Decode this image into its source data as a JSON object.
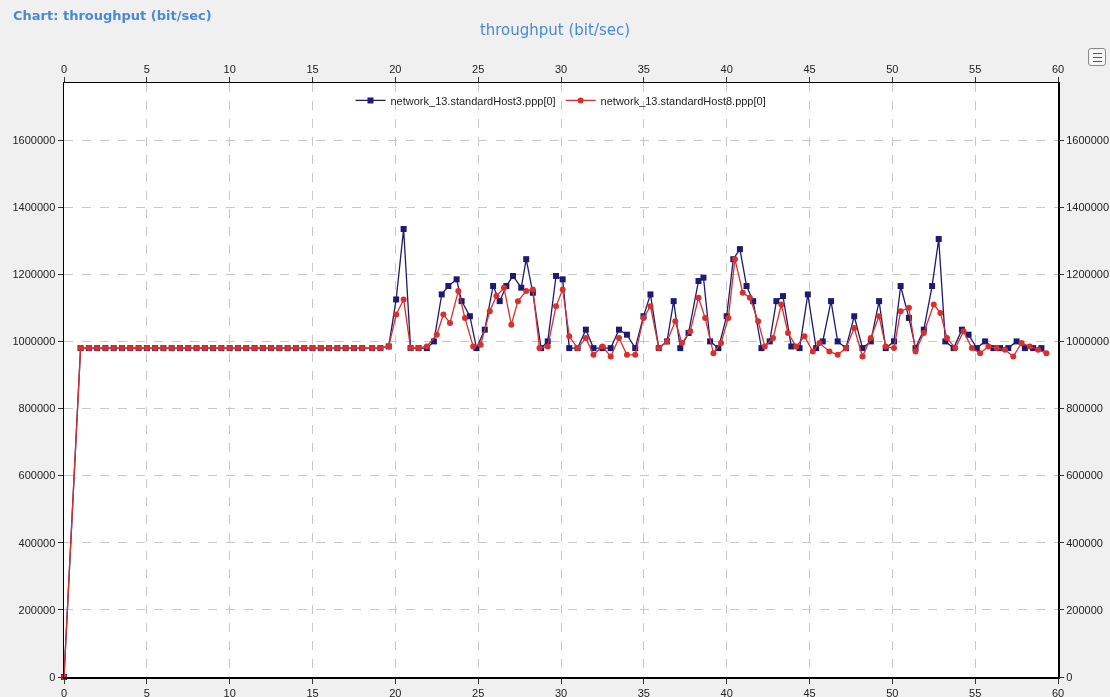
{
  "chart_data": {
    "type": "line",
    "title": "throughput (bit/sec)",
    "annotations": [
      "Chart: throughput (bit/sec)"
    ],
    "xlim": [
      0,
      60
    ],
    "xticks": [
      0,
      5,
      10,
      15,
      20,
      25,
      30,
      35,
      40,
      45,
      50,
      55,
      60
    ],
    "x2lim": [
      0,
      60
    ],
    "x2ticks": [
      0,
      5,
      10,
      15,
      20,
      25,
      30,
      35,
      40,
      45,
      50,
      55,
      60
    ],
    "ylim": [
      0,
      1770000
    ],
    "yticks": [
      0,
      200000,
      400000,
      600000,
      800000,
      1000000,
      1200000,
      1400000,
      1600000
    ],
    "y2lim": [
      0,
      1770000
    ],
    "y2ticks": [
      0,
      200000,
      400000,
      600000,
      800000,
      1000000,
      1200000,
      1400000,
      1600000
    ],
    "grid": true,
    "legend": "top",
    "line_style": "solid",
    "series": [
      {
        "name": "network_13.standardHost3.ppp[0]",
        "color": "#1b1b72",
        "marker": "square",
        "x": [
          0,
          1,
          1.5,
          2,
          2.5,
          3,
          3.5,
          4,
          4.5,
          5,
          5.5,
          6,
          6.5,
          7,
          7.5,
          8,
          8.5,
          9,
          9.5,
          10,
          10.5,
          11,
          11.5,
          12,
          12.5,
          13,
          13.5,
          14,
          14.5,
          15,
          15.5,
          16,
          16.5,
          17,
          17.5,
          18,
          18.6,
          19.1,
          19.6,
          20.05,
          20.5,
          20.92,
          21.4,
          21.9,
          22.33,
          22.8,
          23.2,
          23.7,
          24.0,
          24.5,
          24.9,
          25.4,
          25.9,
          26.3,
          26.7,
          27.1,
          27.6,
          27.9,
          28.3,
          28.8,
          29.2,
          29.7,
          30.1,
          30.5,
          31.0,
          31.5,
          31.96,
          32.5,
          33.0,
          33.5,
          33.98,
          34.48,
          34.98,
          35.4,
          35.9,
          36.4,
          36.8,
          37.2,
          37.7,
          38.3,
          38.6,
          39.0,
          39.5,
          40.0,
          40.4,
          40.8,
          41.2,
          41.6,
          42.1,
          42.6,
          43.0,
          43.4,
          43.9,
          44.4,
          44.9,
          45.4,
          45.8,
          46.3,
          46.7,
          47.2,
          47.7,
          48.2,
          48.7,
          49.2,
          49.6,
          50.1,
          50.5,
          51.0,
          51.4,
          51.9,
          52.4,
          52.8,
          53.2,
          53.7,
          54.2,
          54.6,
          55.1,
          55.6,
          56.1,
          56.5,
          57.0,
          57.5,
          58.0,
          58.5,
          59.0
        ],
        "values": [
          0,
          980000,
          980000,
          980000,
          980000,
          980000,
          980000,
          980000,
          980000,
          980000,
          980000,
          980000,
          980000,
          980000,
          980000,
          980000,
          980000,
          980000,
          980000,
          980000,
          980000,
          980000,
          980000,
          980000,
          980000,
          980000,
          980000,
          980000,
          980000,
          980000,
          980000,
          980000,
          980000,
          980000,
          980000,
          980000,
          980000,
          980000,
          985000,
          1125000,
          1335000,
          980000,
          980000,
          980000,
          1000000,
          1140000,
          1165000,
          1185000,
          1120000,
          1075000,
          980000,
          1035000,
          1165000,
          1120000,
          1165000,
          1195000,
          1160000,
          1245000,
          1145000,
          980000,
          1000000,
          1195000,
          1185000,
          980000,
          980000,
          1035000,
          980000,
          980000,
          980000,
          1035000,
          1020000,
          980000,
          1075000,
          1140000,
          980000,
          1000000,
          1120000,
          980000,
          1025000,
          1180000,
          1190000,
          1000000,
          980000,
          1075000,
          1245000,
          1275000,
          1165000,
          1120000,
          980000,
          1000000,
          1120000,
          1135000,
          985000,
          980000,
          1140000,
          980000,
          1000000,
          1120000,
          1000000,
          980000,
          1075000,
          980000,
          1000000,
          1120000,
          980000,
          1000000,
          1165000,
          1070000,
          980000,
          1035000,
          1165000,
          1305000,
          1000000,
          980000,
          1035000,
          1020000,
          980000,
          1000000,
          980000,
          980000,
          980000,
          1000000,
          980000,
          980000,
          980000
        ]
      },
      {
        "name": "network_13.standardHost8.ppp[0]",
        "color": "#d9302c",
        "marker": "circle",
        "x": [
          0,
          1,
          1.5,
          2,
          2.5,
          3,
          3.5,
          4,
          4.5,
          5,
          5.5,
          6,
          6.5,
          7,
          7.5,
          8,
          8.5,
          9,
          9.5,
          10,
          10.5,
          11,
          11.5,
          12,
          12.5,
          13,
          13.5,
          14,
          14.5,
          15,
          15.5,
          16,
          16.5,
          17,
          17.5,
          18,
          18.6,
          19.1,
          19.6,
          20.05,
          20.5,
          20.92,
          21.4,
          21.9,
          22.5,
          22.9,
          23.3,
          23.8,
          24.2,
          24.7,
          25.15,
          25.7,
          26.1,
          26.56,
          27.0,
          27.4,
          27.9,
          28.3,
          28.7,
          29.2,
          29.7,
          30.1,
          30.5,
          31.0,
          31.5,
          31.96,
          32.5,
          33.0,
          33.5,
          33.98,
          34.48,
          34.98,
          35.4,
          35.9,
          36.4,
          36.9,
          37.3,
          37.8,
          38.3,
          38.7,
          39.2,
          39.66,
          40.1,
          40.5,
          40.97,
          41.4,
          41.9,
          42.3,
          42.8,
          43.3,
          43.7,
          44.2,
          44.7,
          45.2,
          45.6,
          46.2,
          46.7,
          47.2,
          47.7,
          48.2,
          48.7,
          49.2,
          49.6,
          50.1,
          50.5,
          51.0,
          51.4,
          51.9,
          52.5,
          52.9,
          53.3,
          53.8,
          54.3,
          54.8,
          55.3,
          55.8,
          56.3,
          56.8,
          57.3,
          57.8,
          58.3,
          58.8,
          59.3
        ],
        "values": [
          0,
          980000,
          980000,
          980000,
          980000,
          980000,
          980000,
          980000,
          980000,
          980000,
          980000,
          980000,
          980000,
          980000,
          980000,
          980000,
          980000,
          980000,
          980000,
          980000,
          980000,
          980000,
          980000,
          980000,
          980000,
          980000,
          980000,
          980000,
          980000,
          980000,
          980000,
          980000,
          980000,
          980000,
          980000,
          980000,
          980000,
          980000,
          985000,
          1080000,
          1125000,
          980000,
          980000,
          985000,
          1020000,
          1080000,
          1055000,
          1150000,
          1070000,
          985000,
          990000,
          1090000,
          1135000,
          1160000,
          1050000,
          1120000,
          1150000,
          1155000,
          980000,
          985000,
          1105000,
          1155000,
          1015000,
          980000,
          1010000,
          960000,
          985000,
          955000,
          1010000,
          960000,
          960000,
          1070000,
          1105000,
          980000,
          1000000,
          1060000,
          995000,
          1030000,
          1130000,
          1070000,
          965000,
          995000,
          1070000,
          1245000,
          1145000,
          1130000,
          1060000,
          985000,
          1010000,
          1110000,
          1025000,
          985000,
          1015000,
          970000,
          995000,
          970000,
          960000,
          980000,
          1040000,
          955000,
          1010000,
          1075000,
          985000,
          980000,
          1090000,
          1100000,
          970000,
          1025000,
          1110000,
          1085000,
          1010000,
          980000,
          1030000,
          980000,
          965000,
          985000,
          980000,
          975000,
          955000,
          995000,
          985000,
          975000,
          965000
        ]
      }
    ]
  }
}
